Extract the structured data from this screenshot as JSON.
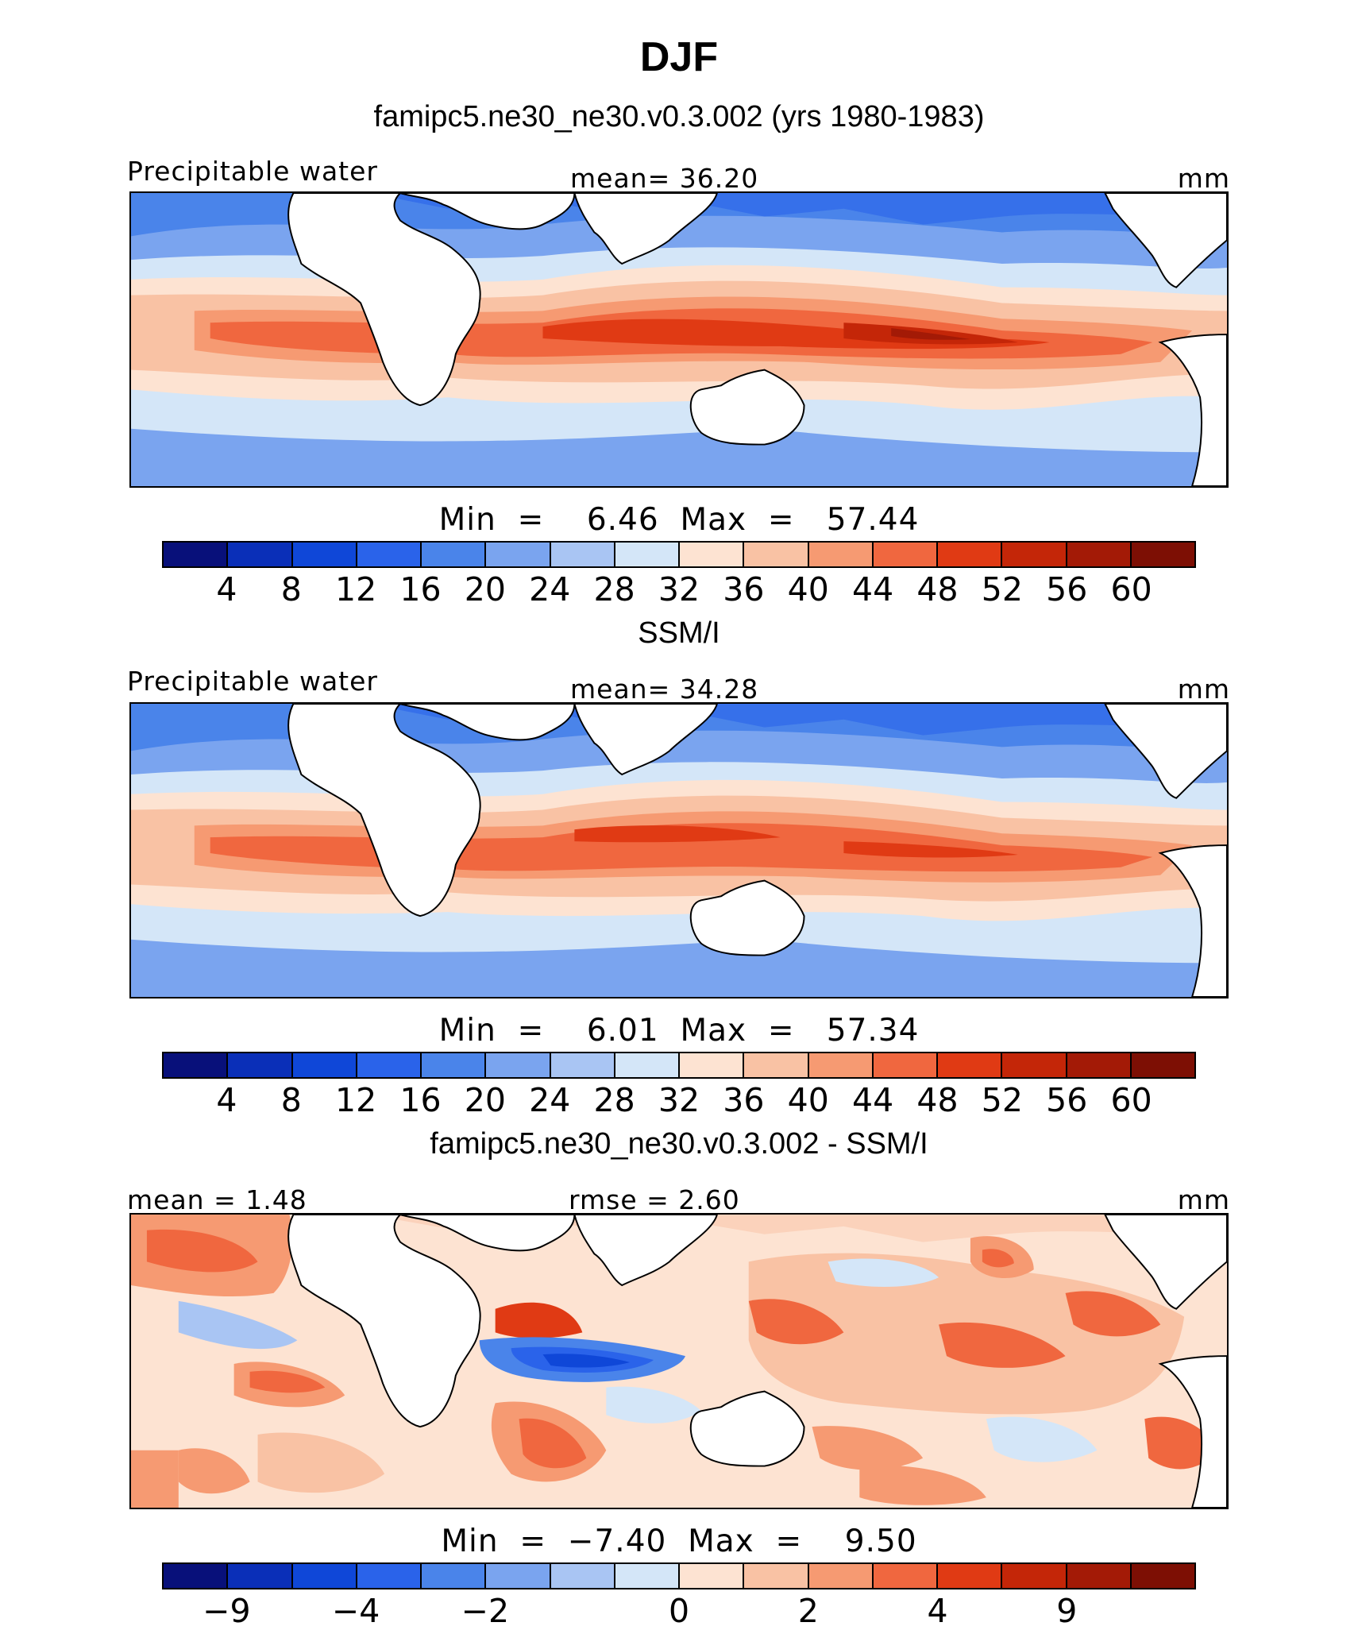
{
  "title": "DJF",
  "panels": [
    {
      "id": "model",
      "heading": "famipc5.ne30_ne30.v0.3.002 (yrs 1980-1983)",
      "left_label": "Precipitable water",
      "center_label": "mean=   36.20",
      "right_label": "mm",
      "minmax": "Min  =    6.46  Max  =   57.44",
      "colorbar": {
        "colors": [
          "#08107a",
          "#0a2fb8",
          "#0f47d8",
          "#2a63ea",
          "#4a84ea",
          "#7aa4ef",
          "#a9c5f3",
          "#d4e6f8",
          "#fde3d2",
          "#f9c2a4",
          "#f69a72",
          "#f0673f",
          "#e03a14",
          "#c42608",
          "#a31a06",
          "#7d0f04"
        ],
        "ticks": [
          "4",
          "8",
          "12",
          "16",
          "20",
          "24",
          "28",
          "32",
          "36",
          "40",
          "44",
          "48",
          "52",
          "56",
          "60"
        ]
      }
    },
    {
      "id": "obs",
      "heading": "SSM/I",
      "left_label": "Precipitable water",
      "center_label": "mean=   34.28",
      "right_label": "mm",
      "minmax": "Min  =    6.01  Max  =   57.34",
      "colorbar": {
        "colors": [
          "#08107a",
          "#0a2fb8",
          "#0f47d8",
          "#2a63ea",
          "#4a84ea",
          "#7aa4ef",
          "#a9c5f3",
          "#d4e6f8",
          "#fde3d2",
          "#f9c2a4",
          "#f69a72",
          "#f0673f",
          "#e03a14",
          "#c42608",
          "#a31a06",
          "#7d0f04"
        ],
        "ticks": [
          "4",
          "8",
          "12",
          "16",
          "20",
          "24",
          "28",
          "32",
          "36",
          "40",
          "44",
          "48",
          "52",
          "56",
          "60"
        ]
      }
    },
    {
      "id": "diff",
      "heading": "famipc5.ne30_ne30.v0.3.002 - SSM/I",
      "left_label": "mean =    1.48",
      "center_label": "rmse =    2.60",
      "right_label": "mm",
      "minmax": "Min  =  −7.40  Max  =    9.50",
      "colorbar": {
        "colors": [
          "#08107a",
          "#0a2fb8",
          "#0f47d8",
          "#2a63ea",
          "#4a84ea",
          "#7aa4ef",
          "#a9c5f3",
          "#d4e6f8",
          "#fde3d2",
          "#f9c2a4",
          "#f69a72",
          "#f0673f",
          "#e03a14",
          "#c42608",
          "#a31a06",
          "#7d0f04"
        ],
        "ticks": [
          "−9",
          "−4",
          "−2",
          "0",
          "2",
          "4",
          "9"
        ]
      }
    }
  ]
}
